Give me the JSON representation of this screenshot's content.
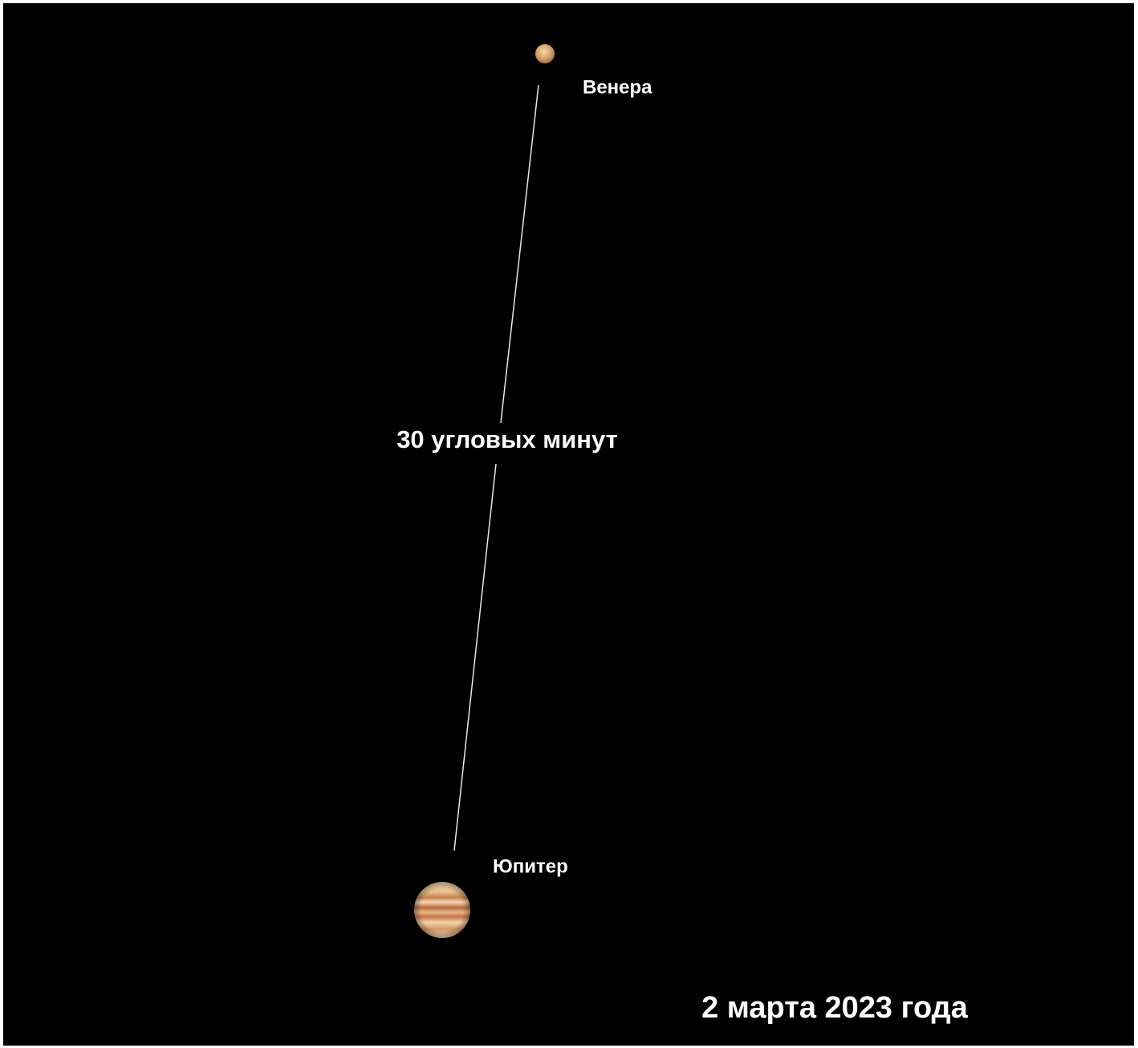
{
  "nodes": [
    {
      "label": "Венера"
    },
    {
      "label": "Юпитер"
    }
  ],
  "separation": {
    "label": "30 угловых минут"
  },
  "date": "2 марта 2023 года"
}
